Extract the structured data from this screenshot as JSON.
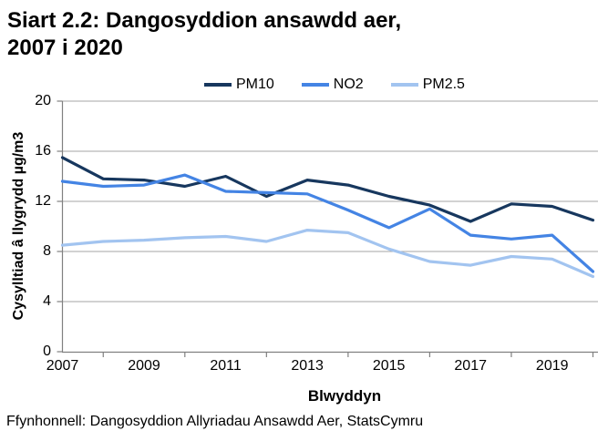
{
  "title": {
    "line1": "Siart 2.2: Dangosyddion ansawdd aer,",
    "line2": "2007 i 2020"
  },
  "source": "Ffynhonnell: Dangosyddion Allyriadau Ansawdd Aer, StatsCymru",
  "colors": {
    "axis": "#808080",
    "gridline": "#A6A6A6",
    "text": "#000000"
  },
  "chart_data": {
    "type": "line",
    "title": "Siart 2.2: Dangosyddion ansawdd aer, 2007 i 2020",
    "xlabel": "Blwyddyn",
    "ylabel": "Cysylltiad â llygrydd µg/m3",
    "x": [
      2007,
      2008,
      2009,
      2010,
      2011,
      2012,
      2013,
      2014,
      2015,
      2016,
      2017,
      2018,
      2019,
      2020
    ],
    "series": [
      {
        "name": "PM10",
        "color": "#17375E",
        "values": [
          15.5,
          13.8,
          13.7,
          13.2,
          14.0,
          12.4,
          13.7,
          13.3,
          12.4,
          11.7,
          10.4,
          11.8,
          11.6,
          10.5
        ]
      },
      {
        "name": "NO2",
        "color": "#4484E4",
        "values": [
          13.6,
          13.2,
          13.3,
          14.1,
          12.8,
          12.7,
          12.6,
          11.3,
          9.9,
          11.4,
          9.3,
          9.0,
          9.3,
          6.4
        ]
      },
      {
        "name": "PM2.5",
        "color": "#A2C4F0",
        "values": [
          8.5,
          8.8,
          8.9,
          9.1,
          9.2,
          8.8,
          9.7,
          9.5,
          8.2,
          7.2,
          6.9,
          7.6,
          7.4,
          6.0
        ]
      }
    ],
    "ylim": [
      0,
      20
    ],
    "yticks": [
      0,
      4,
      8,
      12,
      16,
      20
    ],
    "xtick_labels": [
      2007,
      2009,
      2011,
      2013,
      2015,
      2017,
      2019
    ],
    "xtick_marks": [
      2008,
      2010,
      2012,
      2014,
      2016,
      2018,
      2020
    ],
    "legend_position": "top",
    "grid": "horizontal"
  }
}
